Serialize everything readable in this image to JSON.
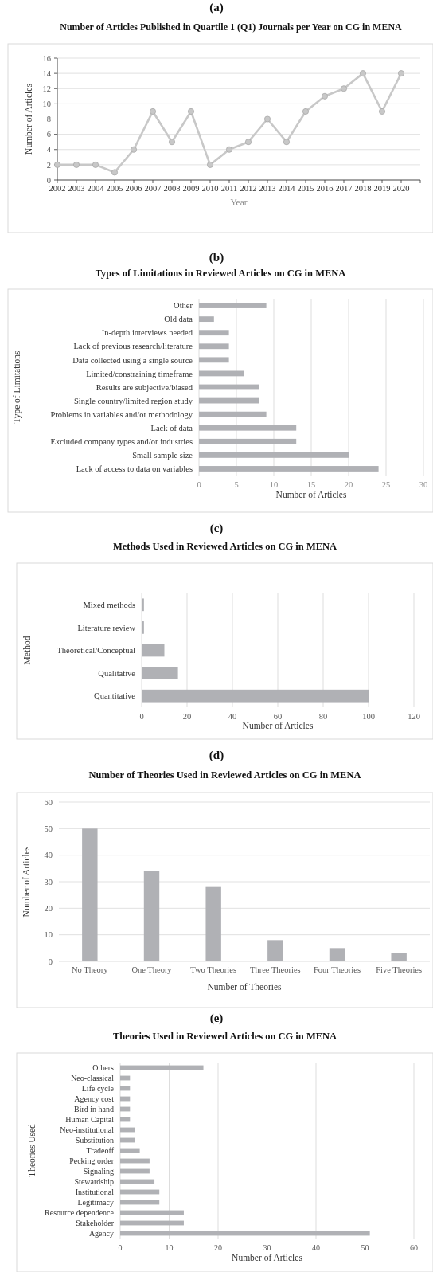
{
  "chart_data": [
    {
      "type": "line",
      "title": "Number of Articles Published in Quartile 1 (Q1) Journals per Year on CG in MENA",
      "annotations": [
        "(a)"
      ],
      "xlabel": "Year",
      "ylabel": "Number of Articles",
      "categories": [
        "2002",
        "2003",
        "2004",
        "2005",
        "2006",
        "2007",
        "2008",
        "2009",
        "2010",
        "2011",
        "2012",
        "2013",
        "2014",
        "2015",
        "2016",
        "2017",
        "2018",
        "2019",
        "2020"
      ],
      "values": [
        2,
        2,
        2,
        1,
        4,
        9,
        5,
        9,
        2,
        4,
        5,
        8,
        5,
        9,
        11,
        12,
        14,
        9,
        14
      ],
      "color": "#c8c8c8",
      "ylim": [
        0,
        16
      ],
      "yticks": [
        0,
        2,
        4,
        6,
        8,
        10,
        12,
        14,
        16
      ],
      "grid": "y",
      "marker": "circle",
      "line_style": "solid"
    },
    {
      "type": "bar",
      "orientation": "horizontal",
      "title": "Types of Limitations in Reviewed Articles on CG in MENA",
      "annotations": [
        "(b)"
      ],
      "xlabel": "Number of Articles",
      "ylabel": "Type of Limitations",
      "categories": [
        "Other",
        "Old data",
        "In-depth interviews needed",
        "Lack of previous research/literature",
        "Data collected using a single source",
        "Limited/constraining timeframe",
        "Results are subjective/biased",
        "Single country/limited region study",
        "Problems in variables and/or methodology",
        "Lack of data",
        "Excluded company types and/or industries",
        "Small sample size",
        "Lack of access to data on variables"
      ],
      "values": [
        9,
        2,
        4,
        4,
        4,
        6,
        8,
        8,
        9,
        13,
        13,
        20,
        24
      ],
      "color": "#b0b1b5",
      "xlim": [
        0,
        30
      ],
      "xticks": [
        0,
        5,
        10,
        15,
        20,
        25,
        30
      ],
      "grid": "x"
    },
    {
      "type": "bar",
      "orientation": "horizontal",
      "title": "Methods Used in Reviewed Articles on CG in MENA",
      "annotations": [
        "(c)"
      ],
      "xlabel": "Number of Articles",
      "ylabel": "Method",
      "categories": [
        "Mixed methods",
        "Literature review",
        "Theoretical/Conceptual",
        "Qualitative",
        "Quantitative"
      ],
      "values": [
        1,
        1,
        10,
        16,
        100
      ],
      "color": "#b0b1b5",
      "xlim": [
        0,
        120
      ],
      "xticks": [
        0,
        20,
        40,
        60,
        80,
        100,
        120
      ],
      "grid": "x"
    },
    {
      "type": "bar",
      "title": "Number of Theories Used in Reviewed Articles on CG in MENA",
      "annotations": [
        "(d)"
      ],
      "xlabel": "Number of Theories",
      "ylabel": "Number of Articles",
      "categories": [
        "No Theory",
        "One Theory",
        "Two Theories",
        "Three Theories",
        "Four Theories",
        "Five Theories"
      ],
      "values": [
        50,
        34,
        28,
        8,
        5,
        3
      ],
      "color": "#b0b1b5",
      "ylim": [
        0,
        60
      ],
      "yticks": [
        0,
        10,
        20,
        30,
        40,
        50,
        60
      ],
      "grid": "y"
    },
    {
      "type": "bar",
      "orientation": "horizontal",
      "title": "Theories Used in Reviewed Articles on CG in MENA",
      "annotations": [
        "(e)"
      ],
      "xlabel": "Number of Articles",
      "ylabel": "Theories Used",
      "categories": [
        "Others",
        "Neo-classical",
        "Life cycle",
        "Agency cost",
        "Bird in hand",
        "Human Capital",
        "Neo-institutional",
        "Substitution",
        "Tradeoff",
        "Pecking order",
        "Signaling",
        "Stewardship",
        "Institutional",
        "Legitimacy",
        "Resource dependence",
        "Stakeholder",
        "Agency"
      ],
      "values": [
        17,
        2,
        2,
        2,
        2,
        2,
        3,
        3,
        4,
        6,
        6,
        7,
        8,
        8,
        13,
        13,
        51
      ],
      "color": "#b0b1b5",
      "xlim": [
        0,
        60
      ],
      "xticks": [
        0,
        10,
        20,
        30,
        40,
        50,
        60
      ],
      "grid": "x"
    }
  ]
}
